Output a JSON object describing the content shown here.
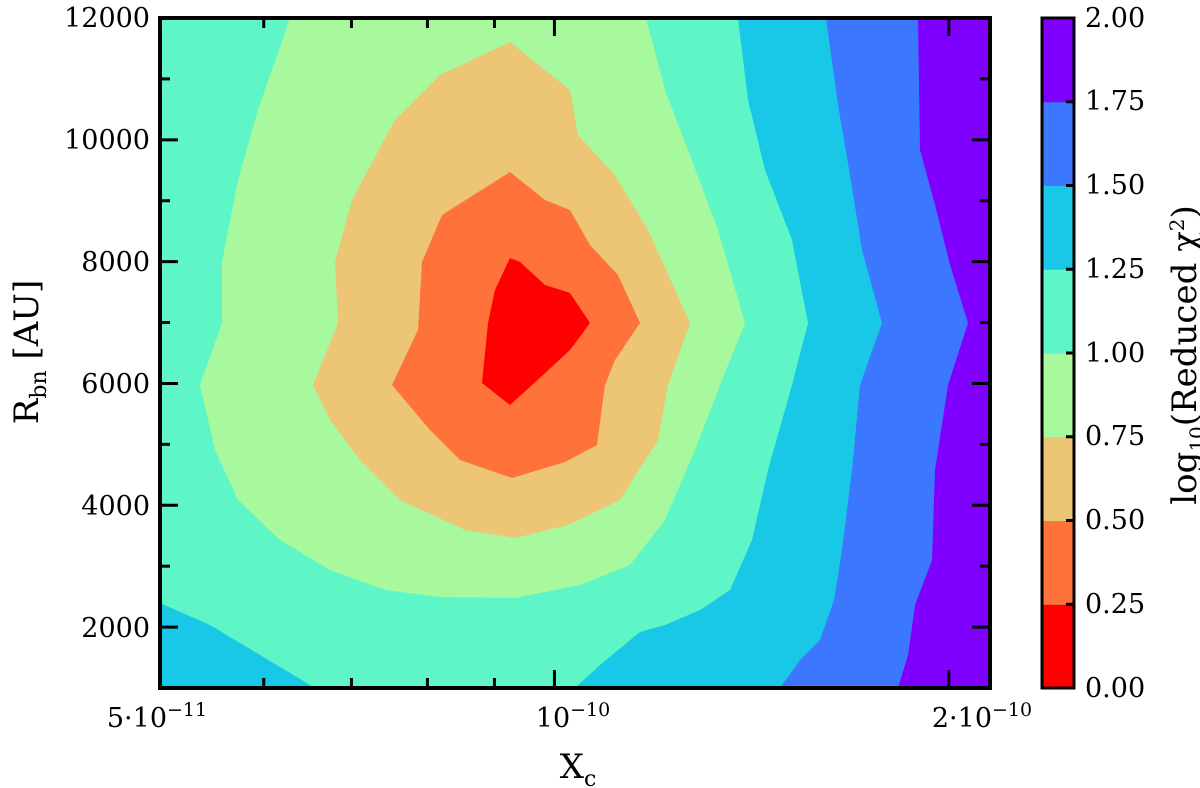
{
  "chart_data": {
    "type": "contourf",
    "xlabel": "X",
    "xlabel_sub": "c",
    "ylabel": "R",
    "ylabel_sub": "bn",
    "ylabel_unit": " [AU]",
    "x_scale": "log",
    "xlim": [
      5e-11,
      2.15e-10
    ],
    "ylim": [
      1000,
      12000
    ],
    "x_ticklabels": [
      {
        "value": 5e-11,
        "base": "5·10",
        "exp": "−11"
      },
      {
        "value": 1e-10,
        "base": "10",
        "exp": "−10"
      },
      {
        "value": 2e-10,
        "base": "2·10",
        "exp": "−10"
      }
    ],
    "y_ticks": [
      2000,
      4000,
      6000,
      8000,
      10000,
      12000
    ],
    "y_ticklabels": [
      "2000",
      "4000",
      "6000",
      "8000",
      "10000",
      "12000"
    ],
    "colorbar": {
      "label_prefix": "log",
      "label_sub": "10",
      "label_main": "(Reduced χ",
      "label_sup": "2",
      "label_suffix": ")",
      "levels": [
        0.0,
        0.25,
        0.5,
        0.75,
        1.0,
        1.25,
        1.5,
        1.75,
        2.0
      ],
      "ticklabels": [
        "0.00",
        "0.25",
        "0.50",
        "0.75",
        "1.00",
        "1.25",
        "1.50",
        "1.75",
        "2.00"
      ],
      "colors": [
        "#fe0000",
        "#ff7239",
        "#ecc674",
        "#a8f89d",
        "#5ef6c7",
        "#19c8e6",
        "#3c78ff",
        "#7f00ff"
      ]
    },
    "minimum_region": {
      "x": 9e-11,
      "y": 7000,
      "value_range": "0.00-0.25"
    }
  }
}
